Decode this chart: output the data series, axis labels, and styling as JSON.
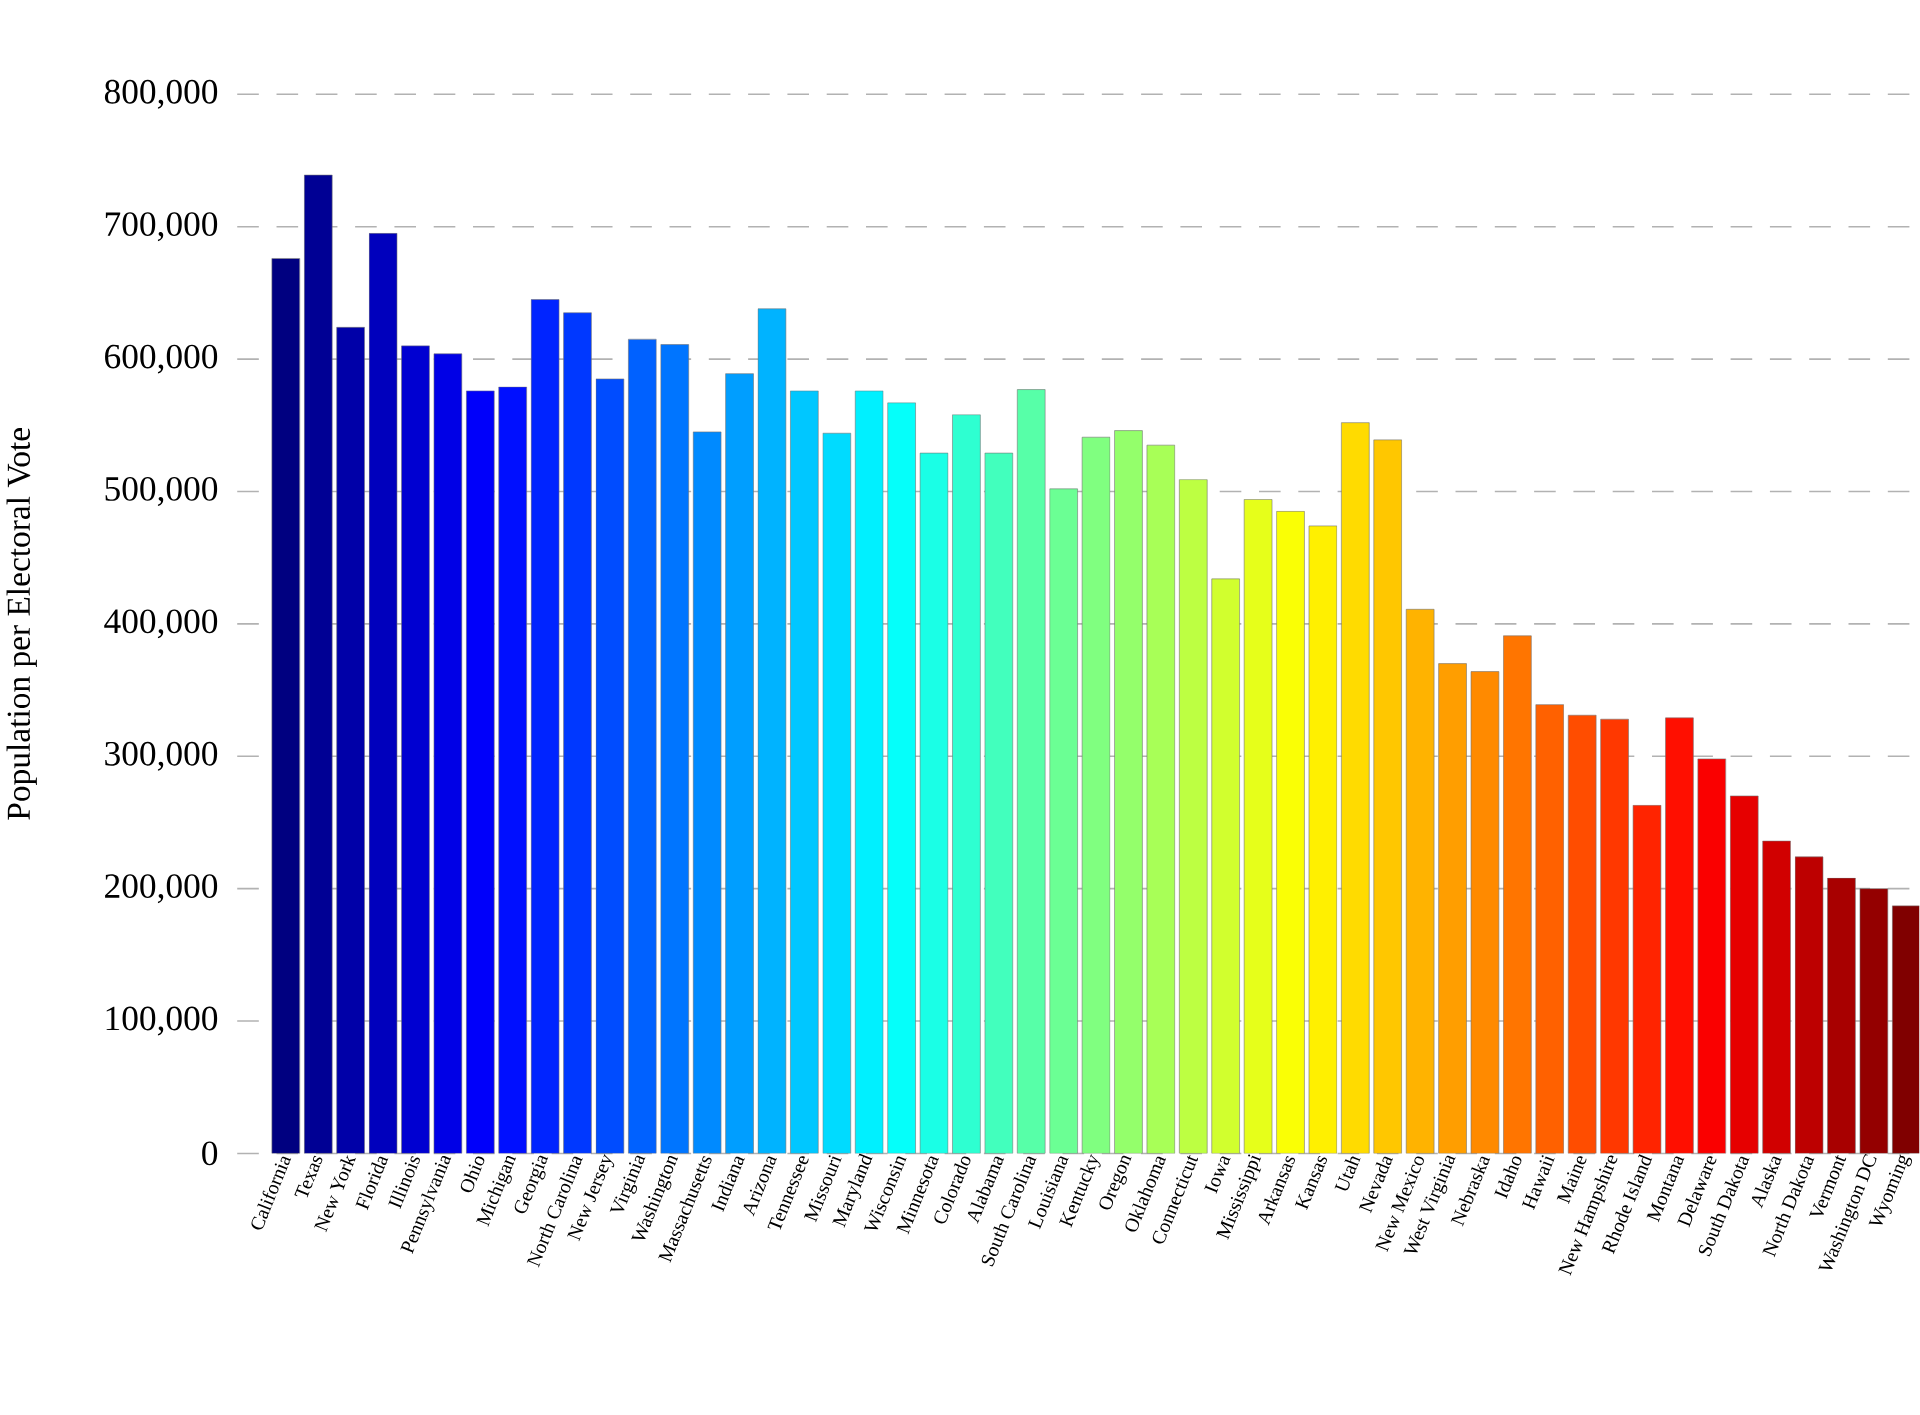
{
  "chart_data": {
    "type": "bar",
    "ylabel": "Population per Electoral Vote",
    "categories": [
      "California",
      "Texas",
      "New York",
      "Florida",
      "Illinois",
      "Pennsylvania",
      "Ohio",
      "Michigan",
      "Georgia",
      "North Carolina",
      "New Jersey",
      "Virginia",
      "Washington",
      "Massachusetts",
      "Indiana",
      "Arizona",
      "Tennessee",
      "Missouri",
      "Maryland",
      "Wisconsin",
      "Minnesota",
      "Colorado",
      "Alabama",
      "South Carolina",
      "Louisiana",
      "Kentucky",
      "Oregon",
      "Oklahoma",
      "Connecticut",
      "Iowa",
      "Mississippi",
      "Arkansas",
      "Kansas",
      "Utah",
      "Nevada",
      "New Mexico",
      "West Virginia",
      "Nebraska",
      "Idaho",
      "Hawaii",
      "Maine",
      "New Hampshire",
      "Rhode Island",
      "Montana",
      "Delaware",
      "South Dakota",
      "Alaska",
      "North Dakota",
      "Vermont",
      "Washington DC",
      "Wyoming"
    ],
    "values": [
      676000,
      739000,
      624000,
      695000,
      610000,
      604000,
      576000,
      579000,
      645000,
      635000,
      585000,
      615000,
      611000,
      545000,
      589000,
      638000,
      576000,
      544000,
      576000,
      567000,
      529000,
      558000,
      529000,
      577000,
      502000,
      541000,
      546000,
      535000,
      509000,
      434000,
      494000,
      485000,
      474000,
      552000,
      539000,
      411000,
      370000,
      364000,
      391000,
      339000,
      331000,
      328000,
      263000,
      329000,
      298000,
      270000,
      236000,
      224000,
      208000,
      200000,
      187000
    ],
    "colors": [
      "#000080",
      "#000094",
      "#0000a8",
      "#0000bd",
      "#0000d1",
      "#0000e6",
      "#0000fa",
      "#000fff",
      "#0024ff",
      "#0038ff",
      "#004cff",
      "#0061ff",
      "#0075ff",
      "#008aff",
      "#009eff",
      "#00b3ff",
      "#00c7ff",
      "#00dbff",
      "#00f0ff",
      "#05fffa",
      "#1affe6",
      "#2effd1",
      "#42ffbd",
      "#57ffa8",
      "#6bff94",
      "#80ff80",
      "#94ff6b",
      "#a8ff57",
      "#bdff42",
      "#d1ff2e",
      "#e6ff1a",
      "#faff05",
      "#fff000",
      "#ffdb00",
      "#ffc700",
      "#ffb300",
      "#ff9e00",
      "#ff8a00",
      "#ff7500",
      "#ff6100",
      "#ff4d00",
      "#ff3800",
      "#ff2400",
      "#ff0f00",
      "#fa0000",
      "#e60000",
      "#d10000",
      "#bd0000",
      "#a80000",
      "#940000",
      "#800000"
    ],
    "ylim": [
      0,
      800000
    ],
    "yticks": [
      {
        "value": 0,
        "label": "0"
      },
      {
        "value": 100000,
        "label": "100,000"
      },
      {
        "value": 200000,
        "label": "200,000"
      },
      {
        "value": 300000,
        "label": "300,000"
      },
      {
        "value": 400000,
        "label": "400,000"
      },
      {
        "value": 500000,
        "label": "500,000"
      },
      {
        "value": 600000,
        "label": "600,000"
      },
      {
        "value": 700000,
        "label": "700,000"
      },
      {
        "value": 800000,
        "label": "800,000"
      }
    ],
    "grid": "y"
  }
}
